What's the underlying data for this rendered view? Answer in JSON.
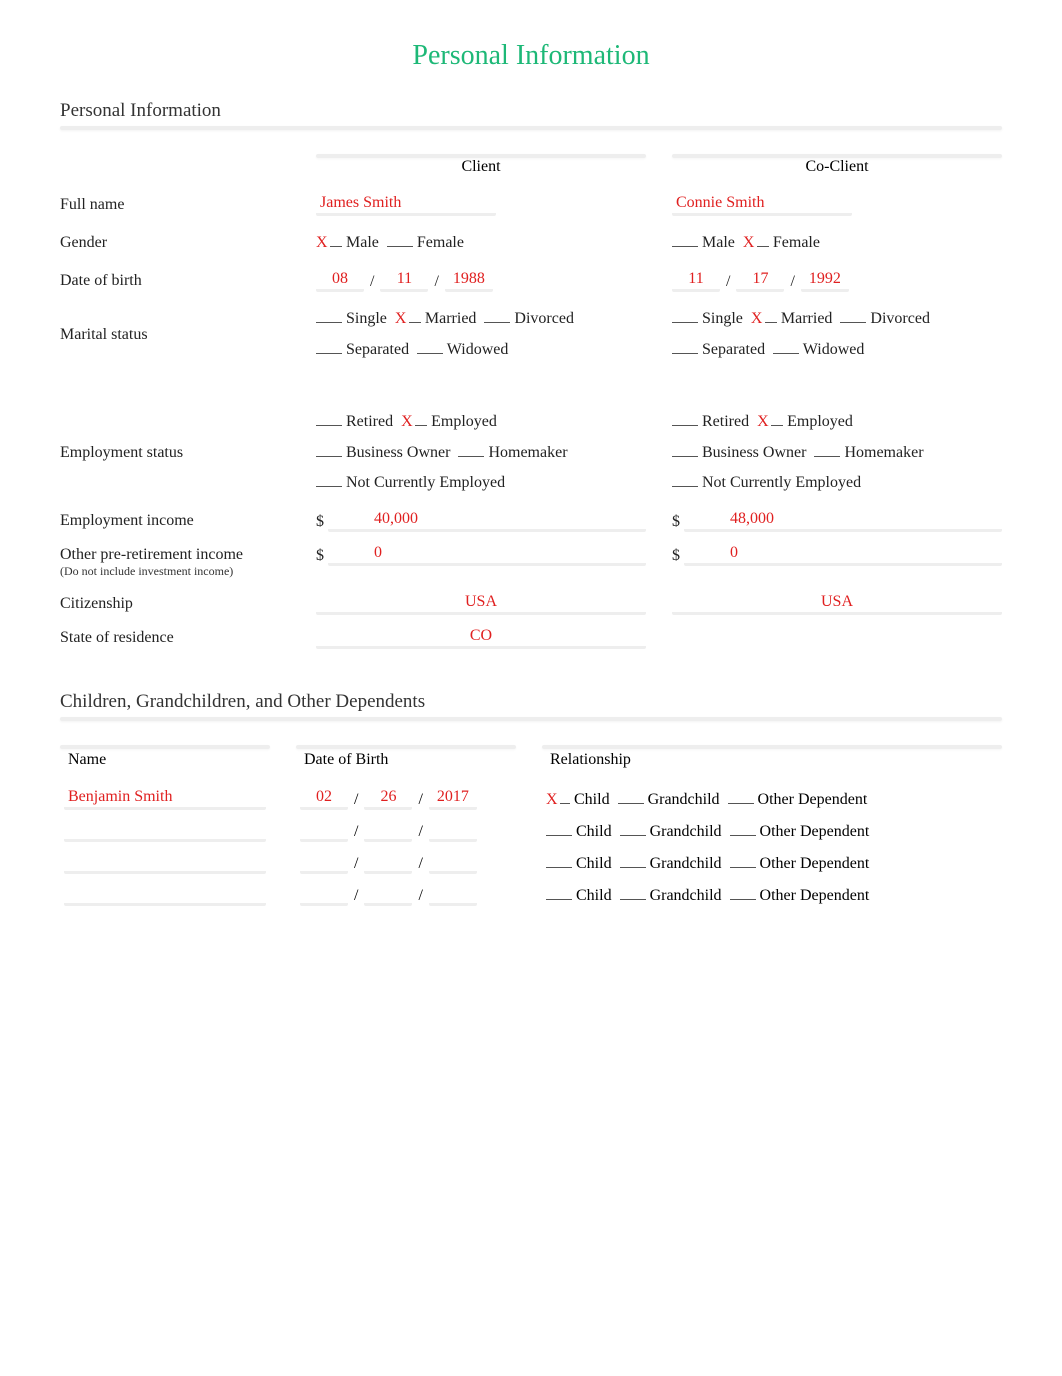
{
  "title": "Personal Information",
  "sections": {
    "personal": {
      "header": "Personal Information",
      "col_headers": {
        "client": "Client",
        "coclient": "Co-Client"
      },
      "labels": {
        "full_name": "Full name",
        "gender": "Gender",
        "dob": "Date of birth",
        "marital": "Marital status",
        "employment": "Employment status",
        "emp_income": "Employment income",
        "other_income_main": "Other pre-retirement income",
        "other_income_sub": "(Do not include investment income)",
        "citizenship": "Citizenship",
        "state": "State of residence"
      },
      "options": {
        "gender": [
          "Male",
          "Female"
        ],
        "marital": [
          "Single",
          "Married",
          "Divorced",
          "Separated",
          "Widowed"
        ],
        "employment": [
          "Retired",
          "Employed",
          "Business Owner",
          "Homemaker",
          "Not Currently Employed"
        ]
      },
      "client": {
        "full_name": "James Smith",
        "gender_selected": "Male",
        "dob": {
          "mm": "08",
          "dd": "11",
          "yyyy": "1988"
        },
        "marital_selected": "Married",
        "employment_selected": "Employed",
        "emp_income": "40,000",
        "other_income": "0",
        "citizenship": "USA",
        "state": "CO"
      },
      "coclient": {
        "full_name": "Connie Smith",
        "gender_selected": "Female",
        "dob": {
          "mm": "11",
          "dd": "17",
          "yyyy": "1992"
        },
        "marital_selected": "Married",
        "employment_selected": "Employed",
        "emp_income": "48,000",
        "other_income": "0",
        "citizenship": "USA"
      }
    },
    "dependents": {
      "header": "Children, Grandchildren, and Other Dependents",
      "col_headers": {
        "name": "Name",
        "dob": "Date of Birth",
        "relationship": "Relationship"
      },
      "rel_options": [
        "Child",
        "Grandchild",
        "Other Dependent"
      ],
      "rows": [
        {
          "name": "Benjamin Smith",
          "dob": {
            "mm": "02",
            "dd": "26",
            "yyyy": "2017"
          },
          "relationship_selected": "Child"
        },
        {
          "name": "",
          "dob": {
            "mm": "",
            "dd": "",
            "yyyy": ""
          },
          "relationship_selected": ""
        },
        {
          "name": "",
          "dob": {
            "mm": "",
            "dd": "",
            "yyyy": ""
          },
          "relationship_selected": ""
        },
        {
          "name": "",
          "dob": {
            "mm": "",
            "dd": "",
            "yyyy": ""
          },
          "relationship_selected": ""
        }
      ]
    }
  },
  "colors": {
    "accent": "#1db877",
    "answer": "#e02020",
    "line": "#eeeeee"
  },
  "mark": "X"
}
